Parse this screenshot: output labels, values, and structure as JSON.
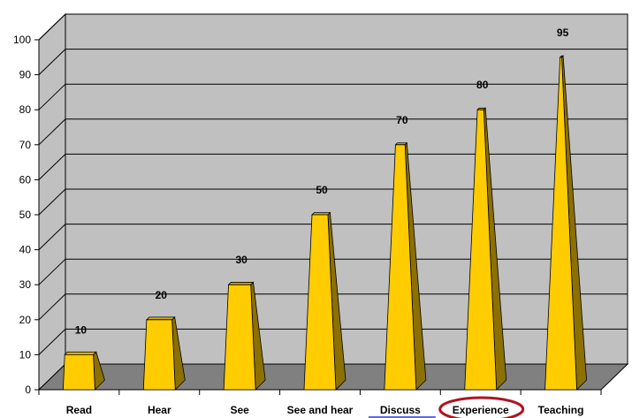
{
  "chart_data": {
    "type": "bar",
    "categories": [
      "Read",
      "Hear",
      "See",
      "See and hear",
      "Discuss",
      "Experience",
      "Teaching"
    ],
    "values": [
      10,
      20,
      30,
      50,
      70,
      80,
      95
    ],
    "data_labels": [
      "10",
      "20",
      "30",
      "50",
      "70",
      "80",
      "95"
    ],
    "y_ticks": [
      "0",
      "10",
      "20",
      "30",
      "40",
      "50",
      "60",
      "70",
      "80",
      "90",
      "100"
    ],
    "ylim": [
      0,
      100
    ],
    "grid": true,
    "legend": "none",
    "title": "",
    "xlabel": "",
    "ylabel": ""
  },
  "colors": {
    "bar_front": "#FFCC00",
    "bar_side": "#8C7000",
    "bar_top": "#D9AD00",
    "wall": "#C0C0C0",
    "floor": "#808080",
    "grid": "#000000",
    "highlight_circle": "#B0141E",
    "highlight_underline": "#3333CC"
  },
  "annotations": {
    "circled_category": "Experience",
    "underlined_category": "Discuss"
  }
}
